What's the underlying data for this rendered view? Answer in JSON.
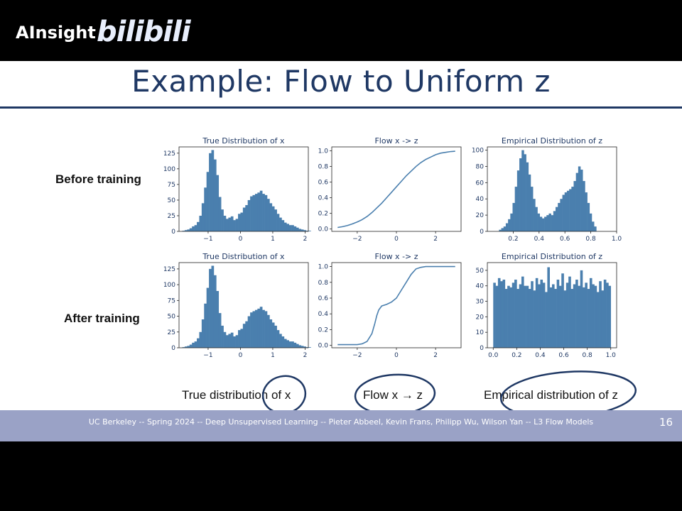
{
  "overlay": {
    "brand": "AInsight",
    "logo_text": "bilibili"
  },
  "slide": {
    "title": "Example: Flow to Uniform z",
    "row_labels": [
      "Before training",
      "After training"
    ],
    "captions": [
      "True distribution of x",
      "Flow x → z",
      "Empirical distribution of z"
    ],
    "footer": "UC Berkeley -- Spring 2024 -- Deep Unsupervised Learning -- Pieter Abbeel, Kevin Frans, Philipp Wu, Wilson Yan -- L3 Flow Models",
    "page_number": "16"
  },
  "colors": {
    "bar": "#4a7fae",
    "line": "#4a7fae",
    "title": "#1f3864",
    "footer": "#9aa2c6",
    "annotation": "#1f3864"
  },
  "chart_data": [
    {
      "id": "before-x",
      "type": "bar",
      "title": "True Distribution of x",
      "xlim": [
        -1.9,
        2.1
      ],
      "ylim": [
        0,
        135
      ],
      "xticks": [
        -1,
        0,
        1,
        2
      ],
      "xtick_labels": [
        "−1",
        "0",
        "1",
        "2"
      ],
      "yticks": [
        0,
        25,
        50,
        75,
        100,
        125
      ],
      "ytick_labels": [
        "0",
        "25",
        "50",
        "75",
        "100",
        "125"
      ],
      "bin_start": -1.8,
      "bin_width": 0.075,
      "values": [
        1,
        2,
        3,
        5,
        8,
        10,
        15,
        25,
        45,
        70,
        95,
        125,
        130,
        115,
        90,
        55,
        35,
        25,
        20,
        22,
        24,
        18,
        20,
        28,
        30,
        38,
        42,
        50,
        56,
        58,
        60,
        62,
        65,
        60,
        58,
        52,
        45,
        40,
        35,
        28,
        22,
        18,
        14,
        12,
        10,
        10,
        8,
        6,
        4,
        3,
        2,
        1,
        1
      ]
    },
    {
      "id": "before-flow",
      "type": "line",
      "title": "Flow x -> z",
      "xlim": [
        -3.3,
        3.3
      ],
      "ylim": [
        -0.03,
        1.05
      ],
      "xticks": [
        -2,
        0,
        2
      ],
      "xtick_labels": [
        "−2",
        "0",
        "2"
      ],
      "yticks": [
        0.0,
        0.2,
        0.4,
        0.6,
        0.8,
        1.0
      ],
      "ytick_labels": [
        "0.0",
        "0.2",
        "0.4",
        "0.6",
        "0.8",
        "1.0"
      ],
      "x": [
        -3.0,
        -2.75,
        -2.5,
        -2.25,
        -2.0,
        -1.75,
        -1.5,
        -1.25,
        -1.0,
        -0.75,
        -0.5,
        -0.25,
        0.0,
        0.25,
        0.5,
        0.75,
        1.0,
        1.25,
        1.5,
        1.75,
        2.0,
        2.25,
        2.5,
        2.75,
        3.0
      ],
      "y": [
        0.02,
        0.03,
        0.045,
        0.065,
        0.09,
        0.12,
        0.16,
        0.21,
        0.27,
        0.33,
        0.4,
        0.47,
        0.54,
        0.61,
        0.68,
        0.74,
        0.8,
        0.85,
        0.89,
        0.92,
        0.95,
        0.97,
        0.98,
        0.99,
        0.995
      ]
    },
    {
      "id": "before-z",
      "type": "bar",
      "title": "Empirical Distribution of z",
      "xlim": [
        0.0,
        1.0
      ],
      "ylim": [
        0,
        104
      ],
      "xticks": [
        0.2,
        0.4,
        0.6,
        0.8,
        1.0
      ],
      "xtick_labels": [
        "0.2",
        "0.4",
        "0.6",
        "0.8",
        "1.0"
      ],
      "yticks": [
        0,
        20,
        40,
        60,
        80,
        100
      ],
      "ytick_labels": [
        "0",
        "20",
        "40",
        "60",
        "80",
        "100"
      ],
      "bin_start": 0.09,
      "bin_width": 0.0175,
      "values": [
        2,
        4,
        6,
        10,
        15,
        22,
        35,
        55,
        75,
        90,
        100,
        95,
        85,
        70,
        55,
        40,
        30,
        22,
        18,
        16,
        18,
        20,
        22,
        20,
        25,
        30,
        35,
        40,
        45,
        48,
        50,
        52,
        55,
        62,
        72,
        80,
        76,
        62,
        48,
        35,
        22,
        12,
        6
      ]
    },
    {
      "id": "after-x",
      "type": "bar",
      "title": "True Distribution of x",
      "xlim": [
        -1.9,
        2.1
      ],
      "ylim": [
        0,
        135
      ],
      "xticks": [
        -1,
        0,
        1,
        2
      ],
      "xtick_labels": [
        "−1",
        "0",
        "1",
        "2"
      ],
      "yticks": [
        0,
        25,
        50,
        75,
        100,
        125
      ],
      "ytick_labels": [
        "0",
        "25",
        "50",
        "75",
        "100",
        "125"
      ],
      "bin_start": -1.8,
      "bin_width": 0.075,
      "values": [
        1,
        2,
        3,
        5,
        8,
        10,
        15,
        25,
        45,
        70,
        95,
        125,
        130,
        115,
        90,
        55,
        35,
        25,
        20,
        22,
        24,
        18,
        20,
        28,
        30,
        38,
        42,
        50,
        56,
        58,
        60,
        62,
        65,
        60,
        58,
        52,
        45,
        40,
        35,
        28,
        22,
        18,
        14,
        12,
        10,
        10,
        8,
        6,
        4,
        3,
        2,
        1,
        1
      ]
    },
    {
      "id": "after-flow",
      "type": "line",
      "title": "Flow x -> z",
      "xlim": [
        -3.3,
        3.3
      ],
      "ylim": [
        -0.03,
        1.05
      ],
      "xticks": [
        -2,
        0,
        2
      ],
      "xtick_labels": [
        "−2",
        "0",
        "2"
      ],
      "yticks": [
        0.0,
        0.2,
        0.4,
        0.6,
        0.8,
        1.0
      ],
      "ytick_labels": [
        "0.0",
        "0.2",
        "0.4",
        "0.6",
        "0.8",
        "1.0"
      ],
      "x": [
        -3.0,
        -2.5,
        -2.0,
        -1.75,
        -1.5,
        -1.25,
        -1.1,
        -1.0,
        -0.9,
        -0.75,
        -0.5,
        -0.25,
        0.0,
        0.25,
        0.5,
        0.75,
        1.0,
        1.25,
        1.5,
        2.0,
        2.5,
        3.0
      ],
      "y": [
        0.01,
        0.01,
        0.01,
        0.02,
        0.05,
        0.15,
        0.28,
        0.38,
        0.45,
        0.5,
        0.52,
        0.55,
        0.6,
        0.7,
        0.8,
        0.9,
        0.97,
        0.99,
        1.0,
        1.0,
        1.0,
        1.0
      ]
    },
    {
      "id": "after-z",
      "type": "bar",
      "title": "Empirical Distribution of z",
      "xlim": [
        -0.05,
        1.05
      ],
      "ylim": [
        0,
        55
      ],
      "xticks": [
        0.0,
        0.2,
        0.4,
        0.6,
        0.8,
        1.0
      ],
      "xtick_labels": [
        "0.0",
        "0.2",
        "0.4",
        "0.6",
        "0.8",
        "1.0"
      ],
      "yticks": [
        0,
        10,
        20,
        30,
        40,
        50
      ],
      "ytick_labels": [
        "0",
        "10",
        "20",
        "30",
        "40",
        "50"
      ],
      "bin_start": 0.0,
      "bin_width": 0.02,
      "values": [
        42,
        40,
        45,
        43,
        44,
        38,
        40,
        39,
        42,
        44,
        38,
        41,
        46,
        40,
        40,
        38,
        43,
        37,
        45,
        41,
        44,
        42,
        36,
        52,
        39,
        41,
        38,
        44,
        40,
        48,
        37,
        42,
        46,
        38,
        41,
        44,
        40,
        50,
        39,
        42,
        38,
        45,
        41,
        40,
        36,
        43,
        37,
        44,
        42,
        40
      ]
    }
  ]
}
